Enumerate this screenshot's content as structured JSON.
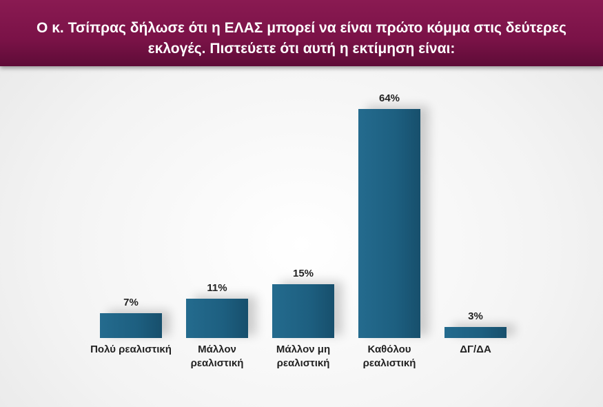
{
  "chart_data": {
    "type": "bar",
    "title": "Ο κ. Τσίπρας δήλωσε ότι η ΕΛΑΣ μπορεί να είναι πρώτο κόμμα στις δεύτερες εκλογές. Πιστεύετε ότι αυτή η εκτίμηση είναι:",
    "categories": [
      "Πολύ ρεαλιστική",
      "Μάλλον ρεαλιστική",
      "Μάλλον μη ρεαλιστική",
      "Καθόλου ρεαλιστική",
      "ΔΓ/ΔΑ"
    ],
    "values": [
      7,
      11,
      15,
      64,
      3
    ],
    "value_labels": [
      "7%",
      "11%",
      "15%",
      "64%",
      "3%"
    ],
    "color": "#1f6183"
  }
}
